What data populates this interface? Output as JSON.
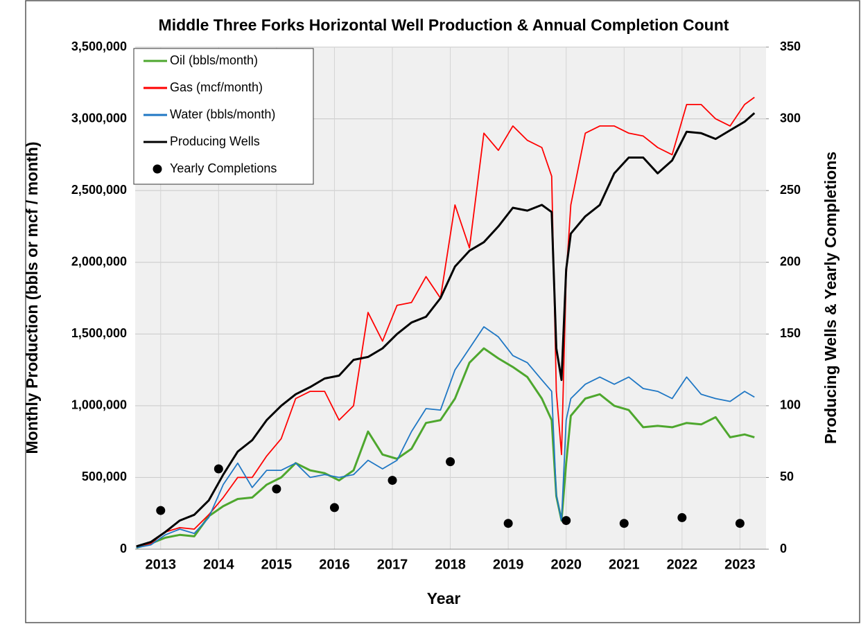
{
  "chart_data": {
    "type": "line",
    "title": "Middle Three Forks Horizontal Well Production & Annual Completion Count",
    "xlabel": "Year",
    "ylabel": "Monthly Production (bbls or mcf / month)",
    "y2label": "Producing Wells & Yearly Completions",
    "x": [
      2013.08,
      2013.33,
      2013.58,
      2013.83,
      2014.08,
      2014.33,
      2014.58,
      2014.83,
      2015.08,
      2015.33,
      2015.58,
      2015.83,
      2016.08,
      2016.33,
      2016.58,
      2016.83,
      2017.08,
      2017.33,
      2017.58,
      2017.83,
      2018.08,
      2018.33,
      2018.58,
      2018.83,
      2019.08,
      2019.33,
      2019.58,
      2019.83,
      2020.08,
      2020.25,
      2020.33,
      2020.42,
      2020.5,
      2020.58,
      2020.83,
      2021.08,
      2021.33,
      2021.58,
      2021.83,
      2022.08,
      2022.33,
      2022.58,
      2022.83,
      2023.08,
      2023.33,
      2023.58,
      2023.75
    ],
    "series": [
      {
        "name": "Oil (bbls/month)",
        "color": "#4ea72e",
        "axis": "y",
        "values": [
          10000,
          40000,
          80000,
          100000,
          90000,
          230000,
          300000,
          350000,
          360000,
          450000,
          500000,
          600000,
          550000,
          530000,
          480000,
          550000,
          820000,
          660000,
          630000,
          700000,
          880000,
          900000,
          1050000,
          1300000,
          1400000,
          1330000,
          1270000,
          1200000,
          1050000,
          900000,
          370000,
          200000,
          600000,
          930000,
          1050000,
          1080000,
          1000000,
          970000,
          850000,
          860000,
          850000,
          880000,
          870000,
          920000,
          780000,
          800000,
          780000
        ]
      },
      {
        "name": "Gas (mcf/month)",
        "color": "#ff0000",
        "axis": "y",
        "values": [
          20000,
          40000,
          120000,
          150000,
          140000,
          240000,
          360000,
          500000,
          500000,
          650000,
          770000,
          1050000,
          1100000,
          1100000,
          900000,
          1000000,
          1650000,
          1450000,
          1700000,
          1720000,
          1900000,
          1750000,
          2400000,
          2100000,
          2900000,
          2780000,
          2950000,
          2850000,
          2800000,
          2600000,
          1100000,
          660000,
          1900000,
          2400000,
          2900000,
          2950000,
          2950000,
          2900000,
          2880000,
          2800000,
          2750000,
          3100000,
          3100000,
          3000000,
          2950000,
          3100000,
          3150000
        ]
      },
      {
        "name": "Water (bbls/month)",
        "color": "#1f77c4",
        "axis": "y",
        "values": [
          10000,
          30000,
          100000,
          140000,
          110000,
          220000,
          450000,
          600000,
          430000,
          550000,
          550000,
          600000,
          500000,
          520000,
          500000,
          520000,
          620000,
          560000,
          620000,
          820000,
          980000,
          970000,
          1250000,
          1400000,
          1550000,
          1480000,
          1350000,
          1300000,
          1180000,
          1100000,
          380000,
          200000,
          900000,
          1050000,
          1150000,
          1200000,
          1150000,
          1200000,
          1120000,
          1100000,
          1050000,
          1200000,
          1080000,
          1050000,
          1030000,
          1100000,
          1060000
        ]
      },
      {
        "name": "Producing Wells",
        "color": "#000000",
        "axis": "y2",
        "values": [
          2,
          5,
          12,
          20,
          24,
          34,
          52,
          68,
          76,
          90,
          100,
          108,
          113,
          119,
          121,
          132,
          134,
          140,
          150,
          158,
          162,
          175,
          197,
          208,
          214,
          225,
          238,
          236,
          240,
          235,
          140,
          118,
          195,
          220,
          232,
          240,
          262,
          273,
          273,
          262,
          271,
          291,
          290,
          286,
          292,
          298,
          304
        ]
      },
      {
        "name": "Yearly Completions",
        "color": "#000000",
        "axis": "y2",
        "type": "scatter",
        "x": [
          2013.5,
          2014.5,
          2015.5,
          2016.5,
          2017.5,
          2018.5,
          2019.5,
          2020.5,
          2021.5,
          2022.5,
          2023.5
        ],
        "values": [
          27,
          56,
          42,
          29,
          48,
          61,
          18,
          20,
          18,
          22,
          18
        ]
      }
    ],
    "xlim": [
      2013.06,
      2023.95
    ],
    "xticks": [
      {
        "value": 2013.5,
        "label": "2013"
      },
      {
        "value": 2014.5,
        "label": "2014"
      },
      {
        "value": 2015.5,
        "label": "2015"
      },
      {
        "value": 2016.5,
        "label": "2016"
      },
      {
        "value": 2017.5,
        "label": "2017"
      },
      {
        "value": 2018.5,
        "label": "2018"
      },
      {
        "value": 2019.5,
        "label": "2019"
      },
      {
        "value": 2020.5,
        "label": "2020"
      },
      {
        "value": 2021.5,
        "label": "2021"
      },
      {
        "value": 2022.5,
        "label": "2022"
      },
      {
        "value": 2023.5,
        "label": "2023"
      }
    ],
    "ylim": [
      0,
      3500000
    ],
    "yticks": [
      0,
      {
        "value": 500000,
        "label": "500,000"
      },
      {
        "value": 1000000,
        "label": "1,000,000"
      },
      {
        "value": 1500000,
        "label": "1,500,000"
      },
      {
        "value": 2000000,
        "label": "2,000,000"
      },
      {
        "value": 2500000,
        "label": "2,500,000"
      },
      {
        "value": 3000000,
        "label": "3,000,000"
      },
      {
        "value": 3500000,
        "label": "3,500,000"
      }
    ],
    "y2lim": [
      0,
      350
    ],
    "y2ticks": [
      0,
      50,
      100,
      150,
      200,
      250,
      300,
      350
    ],
    "grid": true,
    "legend": "upper-left"
  }
}
